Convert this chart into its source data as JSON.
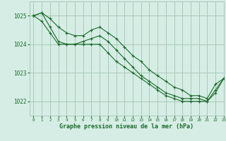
{
  "background_color": "#d6ede5",
  "grid_color": "#a8c8b8",
  "line_color": "#1a6b2a",
  "title": "Graphe pression niveau de la mer (hPa)",
  "xlim": [
    -0.5,
    23
  ],
  "ylim": [
    1021.5,
    1025.5
  ],
  "yticks": [
    1022,
    1023,
    1024,
    1025
  ],
  "xticks": [
    0,
    1,
    2,
    3,
    4,
    5,
    6,
    7,
    8,
    9,
    10,
    11,
    12,
    13,
    14,
    15,
    16,
    17,
    18,
    19,
    20,
    21,
    22,
    23
  ],
  "series": [
    {
      "x": [
        0,
        1,
        2,
        3,
        4,
        5,
        6,
        7,
        8,
        9,
        10,
        11,
        12,
        13,
        14,
        15,
        16,
        17,
        18,
        19,
        20,
        21,
        22,
        23
      ],
      "y": [
        1025.0,
        1025.1,
        1024.9,
        1024.6,
        1024.4,
        1024.3,
        1024.3,
        1024.5,
        1024.6,
        1024.4,
        1024.2,
        1023.9,
        1023.6,
        1023.4,
        1023.1,
        1022.9,
        1022.7,
        1022.5,
        1022.4,
        1022.2,
        1022.2,
        1022.1,
        1022.6,
        1022.8
      ]
    },
    {
      "x": [
        0,
        1,
        2,
        3,
        4,
        5,
        6,
        7,
        8,
        9,
        10,
        11,
        12,
        13,
        14,
        15,
        16,
        17,
        18,
        19,
        20,
        21,
        22,
        23
      ],
      "y": [
        1025.0,
        1025.1,
        1024.6,
        1024.1,
        1024.0,
        1024.0,
        1024.1,
        1024.2,
        1024.3,
        1024.1,
        1023.8,
        1023.5,
        1023.2,
        1022.9,
        1022.7,
        1022.5,
        1022.3,
        1022.2,
        1022.1,
        1022.1,
        1022.1,
        1022.0,
        1022.3,
        1022.8
      ]
    },
    {
      "x": [
        0,
        1,
        2,
        3,
        4,
        5,
        6,
        7,
        8,
        9,
        10,
        11,
        12,
        13,
        14,
        15,
        16,
        17,
        18,
        19,
        20,
        21,
        22,
        23
      ],
      "y": [
        1025.0,
        1024.8,
        1024.4,
        1024.0,
        1024.0,
        1024.0,
        1024.0,
        1024.0,
        1024.0,
        1023.7,
        1023.4,
        1023.2,
        1023.0,
        1022.8,
        1022.6,
        1022.4,
        1022.2,
        1022.1,
        1022.0,
        1022.0,
        1022.0,
        1022.0,
        1022.4,
        1022.8
      ]
    }
  ]
}
